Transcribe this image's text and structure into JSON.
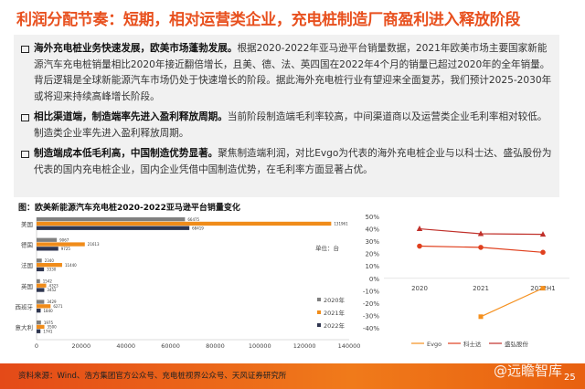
{
  "title": "利润分配节奏：短期，相对运营类企业，充电桩制造厂商盈利进入释放阶段",
  "bullets": [
    {
      "bold": "海外充电桩业务快速发展，欧美市场蓬勃发展。",
      "text": "根据2020-2022年亚马逊平台销量数据，2021年欧美市场主要国家新能源汽车充电桩销量相比2020年接近翻倍增长，且美、德、法、英四国在2022年4个月的销量已超过2020年的全年销量。背后逻辑是全球新能源汽车市场仍处于快速增长的阶段。据此海外充电桩行业有望迎来全面复苏，我们预计2025-2030年或将迎来持续高峰增长阶段。"
    },
    {
      "bold": "相比渠道端，制造端率先进入盈利释放周期。",
      "text": "当前阶段制造端毛利率较高，中间渠道商以及运营类企业毛利率相对较低。制造类企业率先进入盈利释放周期。"
    },
    {
      "bold": "制造端成本低毛利高，中国制造优势显著。",
      "text": "聚焦制造端利润，对比Evgo为代表的海外充电桩企业与以科士达、盛弘股份为代表的国内充电桩企业，国内企业凭借中国制造优势，在毛利率方面显著占优。"
    }
  ],
  "chart_data": [
    {
      "type": "bar",
      "orientation": "horizontal",
      "title": "图：欧美新能源汽车充电桩2020-2022亚马逊平台销量变化",
      "unit_label": "单位：台",
      "categories": [
        "美国",
        "德国",
        "法国",
        "英国",
        "西班牙",
        "意大利"
      ],
      "series": [
        {
          "name": "2020年",
          "color": "#808080",
          "values": [
            66475,
            9067,
            2340,
            1542,
            3429,
            1975
          ]
        },
        {
          "name": "2021年",
          "color": "#f08c1a",
          "values": [
            131961,
            21613,
            11440,
            4323,
            6271,
            3500
          ]
        },
        {
          "name": "2022年",
          "color": "#2f3650",
          "values": [
            68419,
            9725,
            3330,
            3452,
            1840,
            1741
          ]
        }
      ],
      "xlim": [
        0,
        140000
      ],
      "xticks": [
        0,
        20000,
        40000,
        60000,
        80000,
        100000,
        120000,
        140000
      ],
      "legend": "right"
    },
    {
      "type": "line",
      "x": [
        "2020",
        "2021",
        "2022H1"
      ],
      "ylim": [
        -40,
        50
      ],
      "yticks": [
        "50%",
        "40%",
        "30%",
        "20%",
        "10%",
        "0%",
        "-10%",
        "-20%",
        "-30%",
        "-40%"
      ],
      "series": [
        {
          "name": "Evgo",
          "color": "#f5901e",
          "marker": "square",
          "values": [
            null,
            -31,
            -8
          ]
        },
        {
          "name": "科士达",
          "color": "#e0401e",
          "marker": "circle",
          "values": [
            26,
            25,
            21
          ]
        },
        {
          "name": "盛弘股份",
          "color": "#c0302a",
          "marker": "triangle",
          "values": [
            40,
            36,
            35.5
          ]
        }
      ],
      "legend": "bottom"
    }
  ],
  "footer": {
    "source": "资料来源：Wind、浩方集团官方公众号、充电桩视界公众号、天风证券研究所",
    "watermark": "@远瞻智库",
    "page": "25"
  }
}
